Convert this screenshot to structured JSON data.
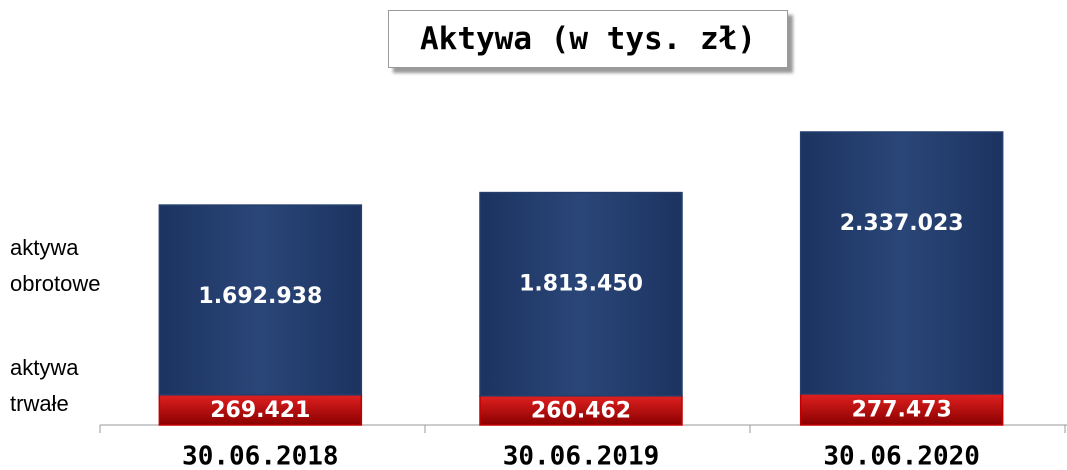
{
  "chart_data": {
    "type": "stacked_bar",
    "title": "Aktywa (w tys. zł)",
    "categories": [
      "30.06.2018",
      "30.06.2019",
      "30.06.2020"
    ],
    "series": [
      {
        "name": "aktywa trwałe",
        "color": "#c00000",
        "values": [
          269421,
          260462,
          277473
        ],
        "value_labels": [
          "269.421",
          "260.462",
          "277.473"
        ]
      },
      {
        "name": "aktywa obrotowe",
        "color": "#243f6e",
        "values": [
          1692938,
          1813450,
          2337023
        ],
        "value_labels": [
          "1.692.938",
          "1.813.450",
          "2.337.023"
        ]
      }
    ]
  }
}
